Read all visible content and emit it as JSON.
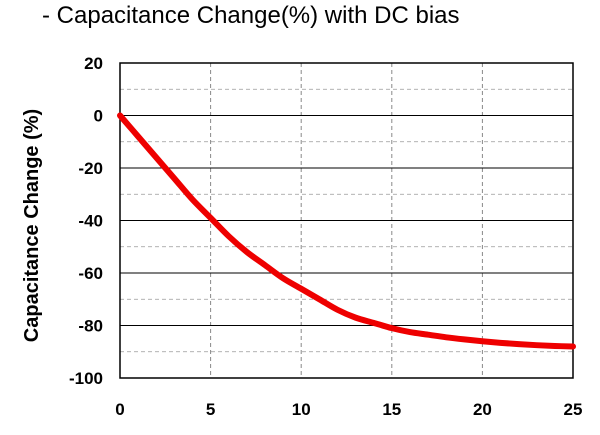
{
  "chart_data": {
    "type": "line",
    "title": "- Capacitance Change(%) with DC bias",
    "xlabel": "",
    "ylabel": "Capacitance Change (%)",
    "xlim": [
      0,
      25
    ],
    "ylim": [
      -100,
      20
    ],
    "xticks": [
      0,
      5,
      10,
      15,
      20,
      25
    ],
    "yticks": [
      20,
      0,
      -20,
      -40,
      -60,
      -80,
      -100
    ],
    "grid": true,
    "legend": "none",
    "series": [
      {
        "color": "#ee0000",
        "x": [
          0,
          1,
          2,
          3,
          4,
          5,
          6,
          7,
          8,
          9,
          10,
          11,
          12,
          13,
          14,
          15,
          16,
          17,
          18,
          19,
          20,
          21,
          22,
          23,
          24,
          25
        ],
        "y": [
          0,
          -8,
          -16,
          -24,
          -32,
          -39,
          -46,
          -52,
          -57,
          -62,
          -66,
          -70,
          -74,
          -77,
          -79,
          -81,
          -82.5,
          -83.5,
          -84.5,
          -85.3,
          -86,
          -86.6,
          -87.1,
          -87.5,
          -87.8,
          -88
        ]
      }
    ]
  }
}
